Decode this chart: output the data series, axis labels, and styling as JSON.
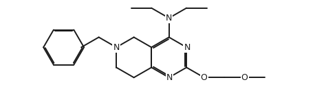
{
  "bg_color": "#ffffff",
  "line_color": "#1a1a1a",
  "line_width": 1.4,
  "font_size": 8.5,
  "fig_width": 4.58,
  "fig_height": 1.52,
  "dpi": 100,
  "xlim": [
    0.0,
    4.58
  ],
  "ylim": [
    0.0,
    1.52
  ]
}
